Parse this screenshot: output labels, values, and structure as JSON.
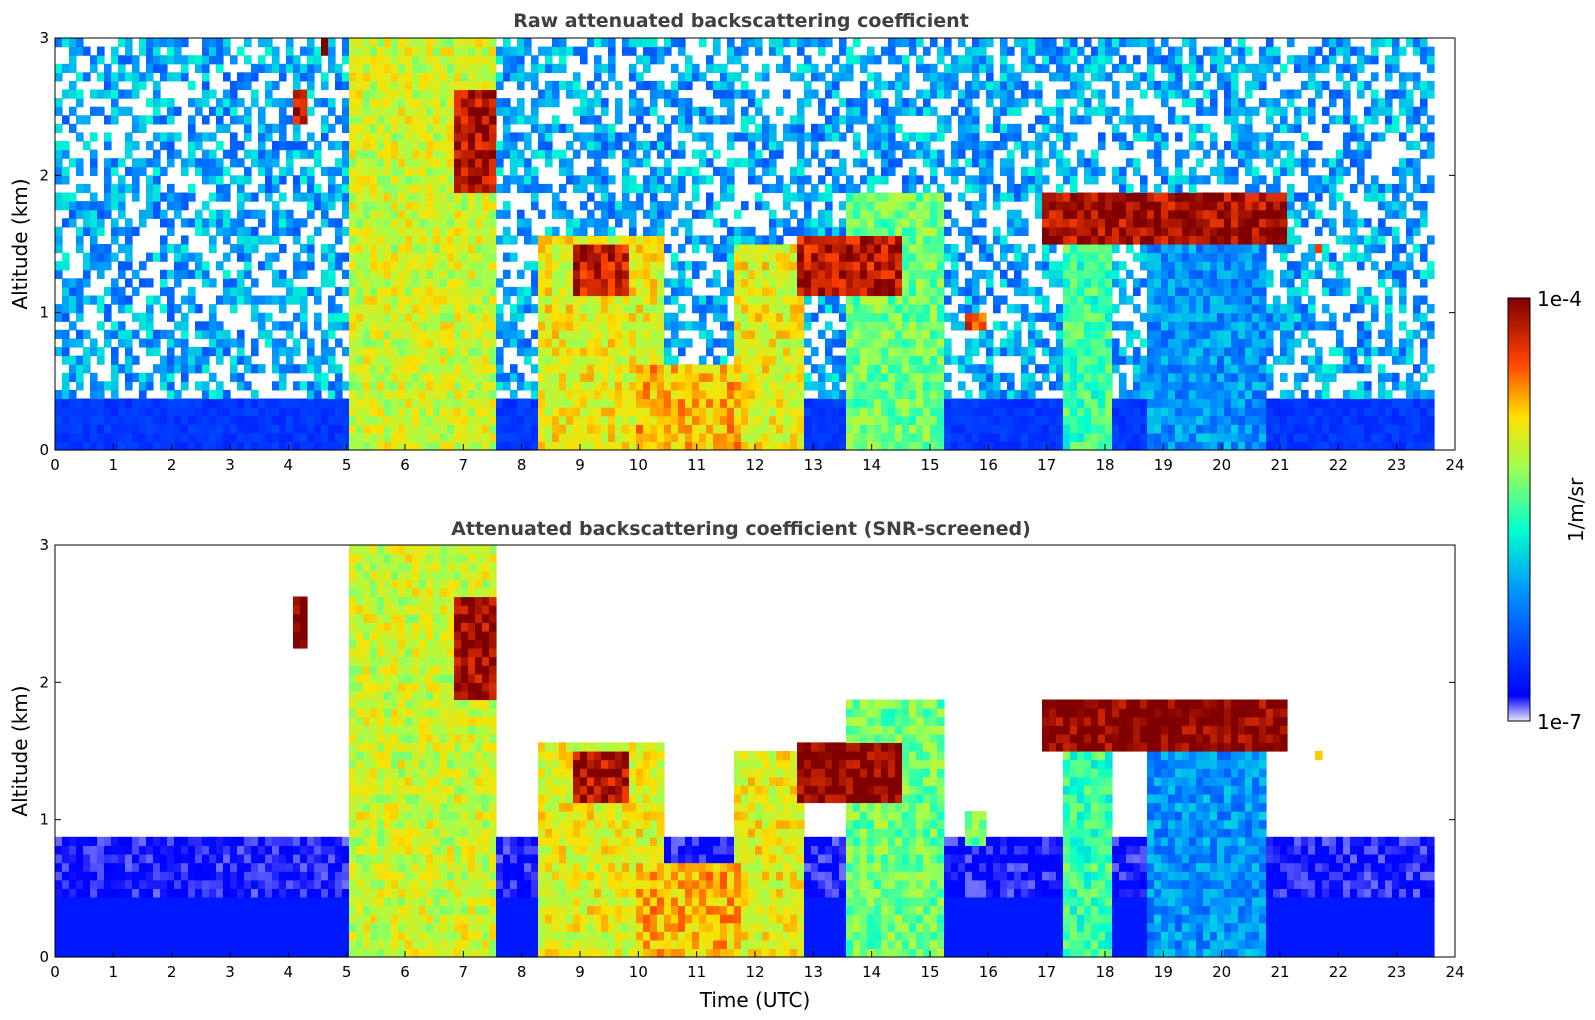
{
  "chart_data": [
    {
      "type": "heatmap",
      "title": "Raw attenuated backscattering coefficient",
      "xlabel": "",
      "ylabel": "Altitude (km)",
      "xlim": [
        0,
        24
      ],
      "ylim": [
        0,
        3
      ],
      "x_ticks": [
        "0",
        "1",
        "2",
        "3",
        "4",
        "5",
        "6",
        "7",
        "8",
        "9",
        "10",
        "11",
        "12",
        "13",
        "14",
        "15",
        "16",
        "17",
        "18",
        "19",
        "20",
        "21",
        "22",
        "23",
        "24"
      ],
      "y_ticks": [
        "0",
        "1",
        "2",
        "3"
      ],
      "data_end_time": 23.65,
      "background_noise": "blue/cyan speckle throughout, denser below 1 km",
      "boundary_layer_top_km": 0.35,
      "features": [
        {
          "x_start": 4.1,
          "x_end": 4.35,
          "y_bottom": 2.35,
          "y_top": 2.6,
          "intensity": 0.95
        },
        {
          "x_start": 4.55,
          "x_end": 4.7,
          "y_bottom": 2.9,
          "y_top": 3.0,
          "intensity": 0.95
        },
        {
          "x_start": 5.1,
          "x_end": 7.6,
          "y_bottom": 0.0,
          "y_top": 3.0,
          "intensity": 0.65
        },
        {
          "x_start": 6.8,
          "x_end": 7.5,
          "y_bottom": 1.9,
          "y_top": 2.6,
          "intensity": 0.95
        },
        {
          "x_start": 8.3,
          "x_end": 10.4,
          "y_bottom": 0.0,
          "y_top": 1.55,
          "intensity": 0.68
        },
        {
          "x_start": 8.9,
          "x_end": 9.8,
          "y_bottom": 1.15,
          "y_top": 1.5,
          "intensity": 0.92
        },
        {
          "x_start": 10.0,
          "x_end": 11.8,
          "y_bottom": 0.0,
          "y_top": 0.6,
          "intensity": 0.75
        },
        {
          "x_start": 11.7,
          "x_end": 12.8,
          "y_bottom": 0.0,
          "y_top": 1.5,
          "intensity": 0.68
        },
        {
          "x_start": 12.7,
          "x_end": 14.5,
          "y_bottom": 1.15,
          "y_top": 1.55,
          "intensity": 0.93
        },
        {
          "x_start": 13.6,
          "x_end": 15.2,
          "y_bottom": 0.0,
          "y_top": 1.9,
          "intensity": 0.55
        },
        {
          "x_start": 15.6,
          "x_end": 15.95,
          "y_bottom": 0.85,
          "y_top": 1.0,
          "intensity": 0.85
        },
        {
          "x_start": 16.95,
          "x_end": 21.1,
          "y_bottom": 1.5,
          "y_top": 1.85,
          "intensity": 0.96
        },
        {
          "x_start": 17.3,
          "x_end": 18.1,
          "y_bottom": 0.0,
          "y_top": 1.5,
          "intensity": 0.5
        },
        {
          "x_start": 18.7,
          "x_end": 20.7,
          "y_bottom": 0.0,
          "y_top": 1.5,
          "intensity": 0.3
        },
        {
          "x_start": 21.55,
          "x_end": 21.7,
          "y_bottom": 1.42,
          "y_top": 1.5,
          "intensity": 0.8
        }
      ]
    },
    {
      "type": "heatmap",
      "title": "Attenuated backscattering coefficient (SNR-screened)",
      "xlabel": "Time (UTC)",
      "ylabel": "Altitude (km)",
      "xlim": [
        0,
        24
      ],
      "ylim": [
        0,
        3
      ],
      "x_ticks": [
        "0",
        "1",
        "2",
        "3",
        "4",
        "5",
        "6",
        "7",
        "8",
        "9",
        "10",
        "11",
        "12",
        "13",
        "14",
        "15",
        "16",
        "17",
        "18",
        "19",
        "20",
        "21",
        "22",
        "23",
        "24"
      ],
      "y_ticks": [
        "0",
        "1",
        "2",
        "3"
      ],
      "data_end_time": 23.65,
      "background_noise": "screened out (white) above boundary layer",
      "boundary_layer_top_km": 0.85,
      "features": [
        {
          "x_start": 4.1,
          "x_end": 4.35,
          "y_bottom": 2.25,
          "y_top": 2.6,
          "intensity": 1.0
        },
        {
          "x_start": 5.1,
          "x_end": 7.6,
          "y_bottom": 0.0,
          "y_top": 3.0,
          "intensity": 0.65
        },
        {
          "x_start": 6.8,
          "x_end": 7.5,
          "y_bottom": 1.9,
          "y_top": 2.6,
          "intensity": 0.97
        },
        {
          "x_start": 8.3,
          "x_end": 10.4,
          "y_bottom": 0.0,
          "y_top": 1.55,
          "intensity": 0.68
        },
        {
          "x_start": 8.9,
          "x_end": 9.8,
          "y_bottom": 1.15,
          "y_top": 1.5,
          "intensity": 0.95
        },
        {
          "x_start": 10.0,
          "x_end": 11.8,
          "y_bottom": 0.0,
          "y_top": 0.7,
          "intensity": 0.75
        },
        {
          "x_start": 11.7,
          "x_end": 12.8,
          "y_bottom": 0.0,
          "y_top": 1.5,
          "intensity": 0.68
        },
        {
          "x_start": 12.7,
          "x_end": 14.5,
          "y_bottom": 1.15,
          "y_top": 1.55,
          "intensity": 1.0
        },
        {
          "x_start": 13.6,
          "x_end": 15.2,
          "y_bottom": 0.0,
          "y_top": 1.9,
          "intensity": 0.55
        },
        {
          "x_start": 15.6,
          "x_end": 15.95,
          "y_bottom": 0.8,
          "y_top": 1.05,
          "intensity": 0.55
        },
        {
          "x_start": 16.95,
          "x_end": 21.1,
          "y_bottom": 1.5,
          "y_top": 1.85,
          "intensity": 1.0
        },
        {
          "x_start": 17.3,
          "x_end": 18.1,
          "y_bottom": 0.0,
          "y_top": 1.5,
          "intensity": 0.5
        },
        {
          "x_start": 18.7,
          "x_end": 20.7,
          "y_bottom": 0.0,
          "y_top": 1.5,
          "intensity": 0.3
        },
        {
          "x_start": 21.55,
          "x_end": 21.7,
          "y_bottom": 1.42,
          "y_top": 1.5,
          "intensity": 0.8
        }
      ]
    }
  ],
  "colorbar": {
    "label": "1/m/sr",
    "min_label": "1e-7",
    "max_label": "1e-4",
    "colormap": "jet",
    "colors": [
      "#e6e6ff",
      "#0000ff",
      "#00a0ff",
      "#00ffd0",
      "#a0ff50",
      "#ffe000",
      "#ff6000",
      "#d00000",
      "#800000"
    ]
  }
}
